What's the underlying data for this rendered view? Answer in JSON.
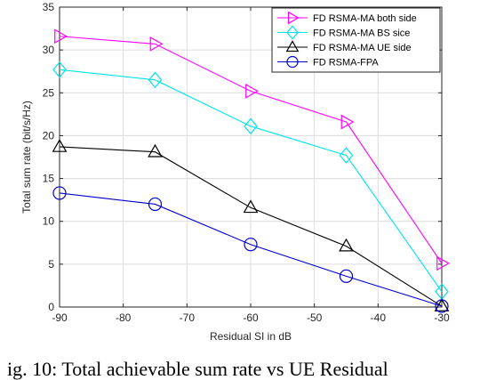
{
  "chart_data": {
    "type": "line",
    "xlabel": "Residual SI in dB",
    "ylabel": "Total sum rate (bit/s/Hz)",
    "xlim": [
      -90,
      -30
    ],
    "ylim": [
      0,
      35
    ],
    "xticks": [
      -90,
      -80,
      -70,
      -60,
      -50,
      -40,
      -30
    ],
    "yticks": [
      0,
      5,
      10,
      15,
      20,
      25,
      30,
      35
    ],
    "x": [
      -90,
      -75,
      -60,
      -45,
      -30
    ],
    "grid": true,
    "legend_position": "top-right",
    "series": [
      {
        "name": "FD RSMA-MA both side",
        "color": "#ff00ff",
        "marker": "triangle-right",
        "values": [
          31.6,
          30.7,
          25.2,
          21.6,
          5.1
        ]
      },
      {
        "name": "FD RSMA-MA BS sice",
        "color": "#00e5e5",
        "marker": "diamond",
        "values": [
          27.7,
          26.5,
          21.1,
          17.7,
          1.8
        ]
      },
      {
        "name": "FD RSMA-MA UE side",
        "color": "#000000",
        "marker": "triangle-up",
        "values": [
          18.7,
          18.1,
          11.6,
          7.1,
          0.1
        ]
      },
      {
        "name": "FD RSMA-FPA",
        "color": "#0000cc",
        "marker": "circle",
        "values": [
          13.3,
          12.0,
          7.3,
          3.6,
          0.1
        ]
      }
    ]
  },
  "caption": "ig. 10: Total achievable sum rate vs UE Residual"
}
